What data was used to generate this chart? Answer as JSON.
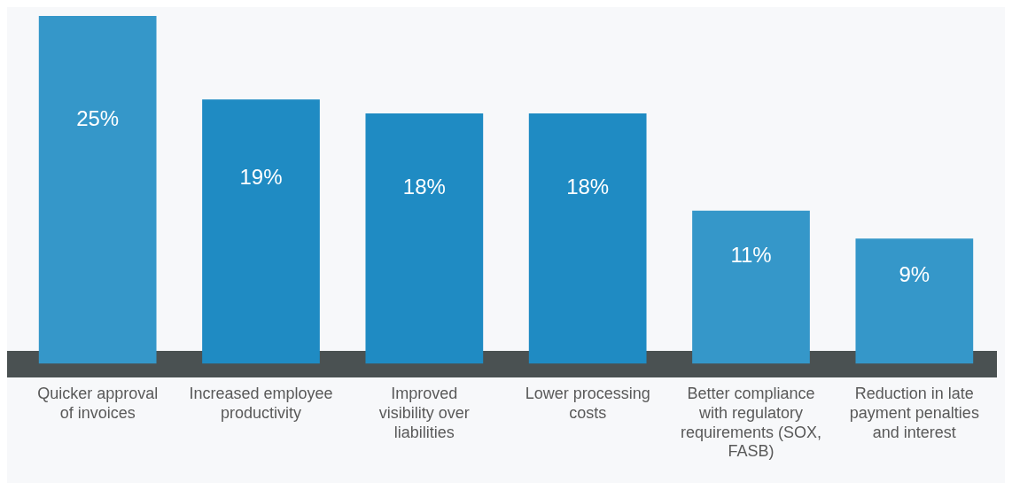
{
  "chart_data": {
    "type": "bar",
    "categories": [
      "Quicker approval of invoices",
      "Increased employee productivity",
      "Improved visibility over liabilities",
      "Lower processing costs",
      "Better compliance with regulatory requirements (SOX, FASB)",
      "Reduction in late payment penalties and interest"
    ],
    "values": [
      25,
      19,
      18,
      18,
      11,
      9
    ],
    "value_labels": [
      "25%",
      "19%",
      "18%",
      "18%",
      "11%",
      "9%"
    ],
    "colors": [
      "#3597c9",
      "#1f8bc3",
      "#1f8bc3",
      "#1f8bc3",
      "#3597c9",
      "#3597c9"
    ],
    "grid": false,
    "legend": false
  }
}
